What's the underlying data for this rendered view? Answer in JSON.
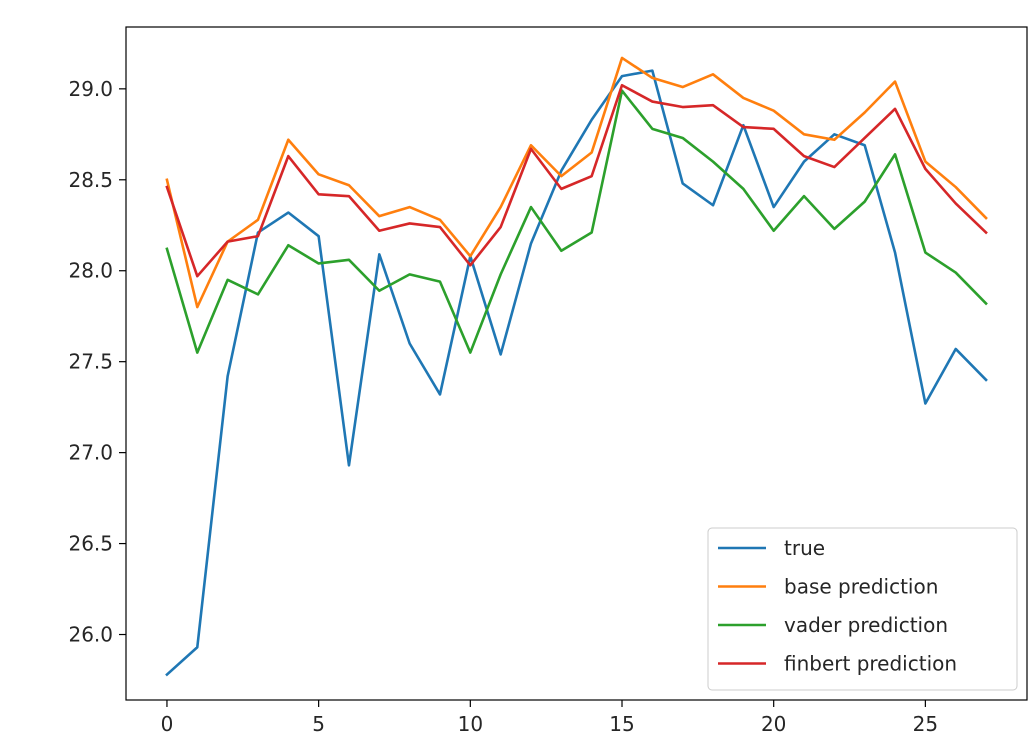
{
  "chart_data": {
    "type": "line",
    "title": "",
    "xlabel": "",
    "ylabel": "",
    "x": [
      0,
      1,
      2,
      3,
      4,
      5,
      6,
      7,
      8,
      9,
      10,
      11,
      12,
      13,
      14,
      15,
      16,
      17,
      18,
      19,
      20,
      21,
      22,
      23,
      24,
      25,
      26,
      27
    ],
    "xlim": [
      -1.35,
      28.35
    ],
    "ylim": [
      25.64,
      29.34
    ],
    "xticks": [
      0,
      5,
      10,
      15,
      20,
      25
    ],
    "yticks": [
      26.0,
      26.5,
      27.0,
      27.5,
      28.0,
      28.5,
      29.0
    ],
    "grid": false,
    "legend_position": "lower-right",
    "series": [
      {
        "name": "true",
        "color": "#1f77b4",
        "values": [
          25.78,
          25.93,
          27.42,
          28.21,
          28.32,
          28.19,
          26.93,
          28.09,
          27.6,
          27.32,
          28.08,
          27.54,
          28.15,
          28.55,
          28.83,
          29.07,
          29.1,
          28.48,
          28.36,
          28.8,
          28.35,
          28.6,
          28.75,
          28.69,
          28.1,
          27.27,
          27.57,
          27.4
        ]
      },
      {
        "name": "base prediction",
        "color": "#ff7f0e",
        "values": [
          28.5,
          27.8,
          28.16,
          28.28,
          28.72,
          28.53,
          28.47,
          28.3,
          28.35,
          28.28,
          28.08,
          28.35,
          28.69,
          28.52,
          28.65,
          29.17,
          29.06,
          29.01,
          29.08,
          28.95,
          28.88,
          28.75,
          28.72,
          28.87,
          29.04,
          28.6,
          28.46,
          28.29
        ]
      },
      {
        "name": "vader prediction",
        "color": "#2ca02c",
        "values": [
          28.12,
          27.55,
          27.95,
          27.87,
          28.14,
          28.04,
          28.06,
          27.89,
          27.98,
          27.94,
          27.55,
          27.98,
          28.35,
          28.11,
          28.21,
          28.99,
          28.78,
          28.73,
          28.6,
          28.45,
          28.22,
          28.41,
          28.23,
          28.38,
          28.64,
          28.1,
          27.99,
          27.82
        ]
      },
      {
        "name": "finbert prediction",
        "color": "#d62728",
        "values": [
          28.46,
          27.97,
          28.16,
          28.19,
          28.63,
          28.42,
          28.41,
          28.22,
          28.26,
          28.24,
          28.03,
          28.24,
          28.67,
          28.45,
          28.52,
          29.02,
          28.93,
          28.9,
          28.91,
          28.79,
          28.78,
          28.63,
          28.57,
          28.73,
          28.89,
          28.56,
          28.37,
          28.21
        ]
      }
    ]
  }
}
